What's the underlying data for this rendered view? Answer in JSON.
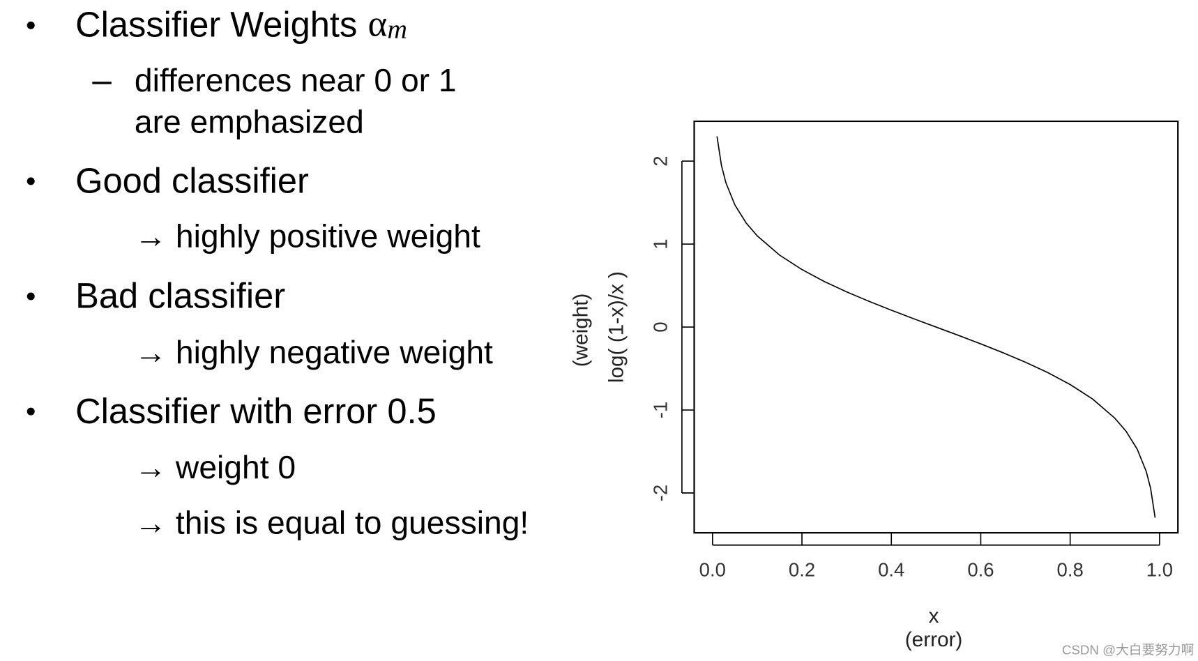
{
  "slide": {
    "lines": [
      "Classifier Weights",
      "α",
      "m",
      "differences near 0 or 1",
      "are emphasized",
      "Good classifier",
      "→ highly positive weight",
      "Bad classifier",
      "→ highly negative weight",
      "Classifier with error 0.5",
      "→ weight 0",
      "→ this is equal to guessing!"
    ],
    "watermark": "CSDN @大白要努力啊"
  },
  "chart_data": {
    "type": "line",
    "x_label": "x",
    "x_label_note": "(error)",
    "y_label": "log( (1-x)/x )",
    "y_label_note": "(weight)",
    "x": [
      0.01,
      0.02,
      0.03,
      0.05,
      0.075,
      0.1,
      0.15,
      0.2,
      0.25,
      0.3,
      0.35,
      0.4,
      0.45,
      0.5,
      0.55,
      0.6,
      0.65,
      0.7,
      0.75,
      0.8,
      0.85,
      0.9,
      0.925,
      0.95,
      0.97,
      0.98,
      0.99
    ],
    "series": [
      {
        "color": "#000000",
        "values": [
          2.298,
          1.946,
          1.738,
          1.472,
          1.256,
          1.099,
          0.867,
          0.693,
          0.549,
          0.424,
          0.31,
          0.203,
          0.1,
          0,
          -0.1,
          -0.203,
          -0.31,
          -0.424,
          -0.549,
          -0.693,
          -0.867,
          -1.099,
          -1.256,
          -1.472,
          -1.738,
          -1.946,
          -2.298
        ]
      }
    ],
    "xlim": [
      -0.041,
      1.041
    ],
    "ylim": [
      -2.48,
      2.48
    ],
    "xticks": [
      {
        "value": 0,
        "label": "0.0"
      },
      0.2,
      0.4,
      0.6,
      0.8,
      {
        "value": 1,
        "label": "1.0"
      }
    ],
    "yticks": [
      -2,
      -1,
      0,
      1,
      2
    ]
  }
}
